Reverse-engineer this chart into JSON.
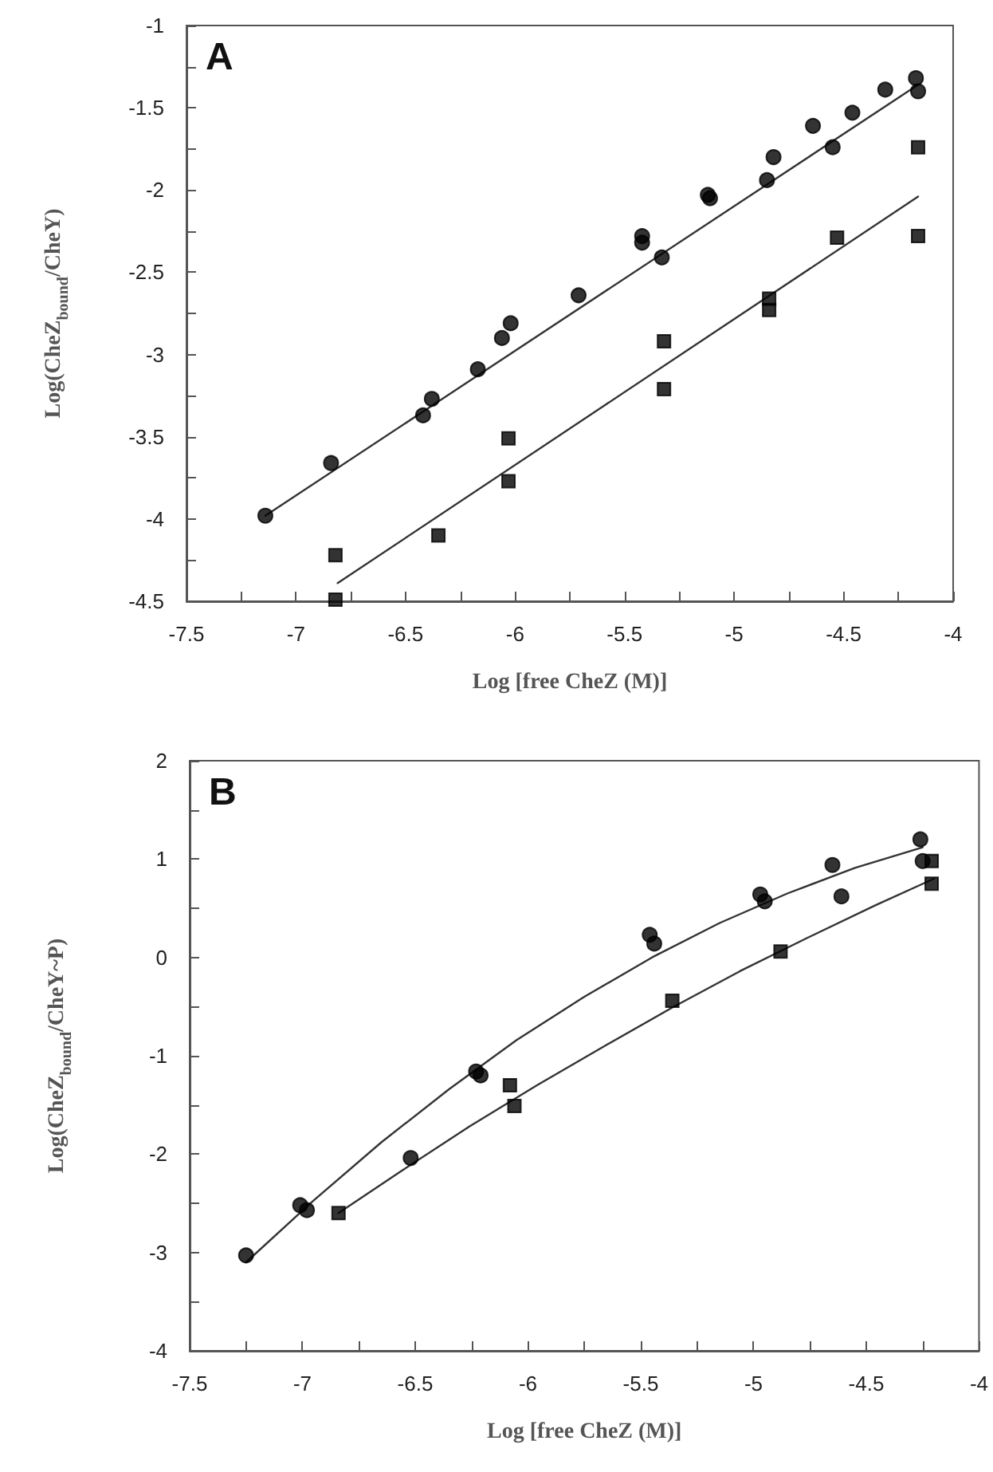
{
  "chart_data": [
    {
      "type": "scatter",
      "xlabel": "Log [free CheZ (M)]",
      "ylabel": "Log(CheZ$_{bound}$/CheY)",
      "annotations": [
        "A"
      ],
      "xlim": [
        -7.5,
        -4
      ],
      "ylim": [
        -4.5,
        -1
      ],
      "xticks": [
        -7.5,
        {
          "value": -7.25,
          "label": null
        },
        -7,
        {
          "value": -6.75,
          "label": null
        },
        -6.5,
        {
          "value": -6.25,
          "label": null
        },
        -6,
        {
          "value": -5.75,
          "label": null
        },
        -5.5,
        {
          "value": -5.25,
          "label": null
        },
        -5,
        {
          "value": -4.75,
          "label": null
        },
        -4.5,
        {
          "value": -4.25,
          "label": null
        },
        -4
      ],
      "yticks": [
        -4.5,
        {
          "value": -4.25,
          "label": null
        },
        -4,
        {
          "value": -3.75,
          "label": null
        },
        -3.5,
        {
          "value": -3.25,
          "label": null
        },
        -3,
        {
          "value": -2.75,
          "label": null
        },
        -2.5,
        {
          "value": -2.25,
          "label": null
        },
        -2,
        {
          "value": -1.75,
          "label": null
        },
        -1.5,
        {
          "value": -1.25,
          "label": null
        },
        -1
      ],
      "grid": false,
      "series": [
        {
          "type": "scatter",
          "marker": "circle",
          "color": "#000000",
          "x": [
            -7.14,
            -6.84,
            -6.42,
            -6.38,
            -6.17,
            -6.06,
            -6.02,
            -5.71,
            -5.42,
            -5.42,
            -5.33,
            -5.12,
            -5.11,
            -4.85,
            -4.82,
            -4.64,
            -4.55,
            -4.46,
            -4.31,
            -4.17,
            -4.16
          ],
          "values": [
            -3.98,
            -3.66,
            -3.37,
            -3.27,
            -3.09,
            -2.9,
            -2.81,
            -2.64,
            -2.28,
            -2.32,
            -2.41,
            -2.03,
            -2.05,
            -1.94,
            -1.8,
            -1.61,
            -1.74,
            -1.53,
            -1.39,
            -1.32,
            -1.4
          ]
        },
        {
          "type": "scatter",
          "marker": "square",
          "color": "#000000",
          "x": [
            -6.82,
            -6.82,
            -6.35,
            -6.03,
            -6.03,
            -5.32,
            -5.32,
            -4.84,
            -4.84,
            -4.53,
            -4.16,
            -4.16
          ],
          "values": [
            -4.22,
            -4.49,
            -4.1,
            -3.51,
            -3.77,
            -2.92,
            -3.21,
            -2.66,
            -2.73,
            -2.29,
            -1.74,
            -2.28
          ]
        },
        {
          "type": "line",
          "marker": "none",
          "line_style": "solid",
          "color": "#333333",
          "x": [
            -7.14,
            -4.16
          ],
          "values": [
            -3.98,
            -1.36
          ]
        },
        {
          "type": "line",
          "marker": "none",
          "line_style": "solid",
          "color": "#333333",
          "x": [
            -6.81,
            -4.16
          ],
          "values": [
            -4.39,
            -2.04
          ]
        }
      ]
    },
    {
      "type": "scatter",
      "xlabel": "Log [free CheZ (M)]",
      "ylabel": "Log(CheZ$_{bound}$/CheY~P)",
      "annotations": [
        "B"
      ],
      "xlim": [
        -7.5,
        -4
      ],
      "ylim": [
        -4,
        2
      ],
      "xticks": [
        -7.5,
        {
          "value": -7.25,
          "label": null
        },
        -7,
        {
          "value": -6.75,
          "label": null
        },
        -6.5,
        {
          "value": -6.25,
          "label": null
        },
        -6,
        {
          "value": -5.75,
          "label": null
        },
        -5.5,
        {
          "value": -5.25,
          "label": null
        },
        -5,
        {
          "value": -4.75,
          "label": null
        },
        -4.5,
        {
          "value": -4.25,
          "label": null
        },
        -4
      ],
      "yticks": [
        -4,
        {
          "value": -3.5,
          "label": null
        },
        -3,
        {
          "value": -2.5,
          "label": null
        },
        -2,
        {
          "value": -1.5,
          "label": null
        },
        -1,
        {
          "value": -0.5,
          "label": null
        },
        0,
        {
          "value": 0.5,
          "label": null
        },
        1,
        {
          "value": 1.5,
          "label": null
        },
        2
      ],
      "grid": false,
      "series": [
        {
          "type": "scatter",
          "marker": "circle",
          "color": "#000000",
          "x": [
            -7.25,
            -7.01,
            -6.98,
            -6.52,
            -6.23,
            -6.21,
            -5.46,
            -5.44,
            -4.97,
            -4.95,
            -4.65,
            -4.61,
            -4.26,
            -4.25
          ],
          "values": [
            -3.03,
            -2.52,
            -2.57,
            -2.04,
            -1.16,
            -1.2,
            0.23,
            0.14,
            0.64,
            0.57,
            0.94,
            0.62,
            1.2,
            0.98
          ]
        },
        {
          "type": "scatter",
          "marker": "square",
          "color": "#000000",
          "x": [
            -6.84,
            -6.08,
            -6.06,
            -5.36,
            -4.88,
            -4.21,
            -4.21
          ],
          "values": [
            -2.6,
            -1.3,
            -1.51,
            -0.44,
            0.06,
            0.98,
            0.75
          ]
        },
        {
          "type": "line",
          "marker": "none",
          "line_style": "solid",
          "color": "#333333",
          "x": [
            -7.25,
            -6.95,
            -6.65,
            -6.35,
            -6.05,
            -5.75,
            -5.45,
            -5.15,
            -4.85,
            -4.55,
            -4.25
          ],
          "values": [
            -3.1,
            -2.47,
            -1.88,
            -1.34,
            -0.84,
            -0.4,
            0,
            0.35,
            0.65,
            0.91,
            1.12
          ]
        },
        {
          "type": "line",
          "marker": "none",
          "line_style": "solid",
          "color": "#333333",
          "x": [
            -6.84,
            -6.56,
            -6.26,
            -5.96,
            -5.66,
            -5.36,
            -5.06,
            -4.76,
            -4.46,
            -4.2
          ],
          "values": [
            -2.6,
            -2.17,
            -1.72,
            -1.3,
            -0.9,
            -0.51,
            -0.14,
            0.2,
            0.53,
            0.8
          ]
        }
      ]
    }
  ]
}
